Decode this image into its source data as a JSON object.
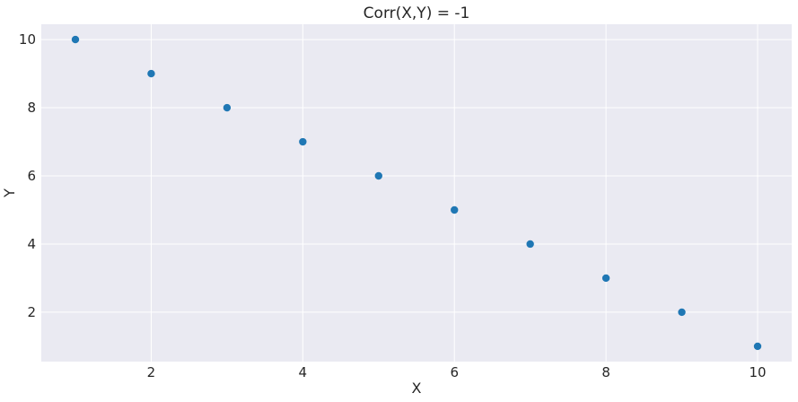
{
  "chart_data": {
    "type": "scatter",
    "title": "Corr(X,Y) = -1",
    "xlabel": "X",
    "ylabel": "Y",
    "xlim": [
      0.55,
      10.45
    ],
    "ylim": [
      0.55,
      10.45
    ],
    "xticks": [
      2,
      4,
      6,
      8,
      10
    ],
    "yticks": [
      2,
      4,
      6,
      8,
      10
    ],
    "grid": true,
    "colors": {
      "background": "#eaeaf2",
      "grid": "#ffffff",
      "point": "#1f77b4"
    },
    "series": [
      {
        "x": [
          1,
          2,
          3,
          4,
          5,
          6,
          7,
          8,
          9,
          10
        ],
        "y": [
          10,
          9,
          8,
          7,
          6,
          5,
          4,
          3,
          2,
          1
        ]
      }
    ]
  }
}
